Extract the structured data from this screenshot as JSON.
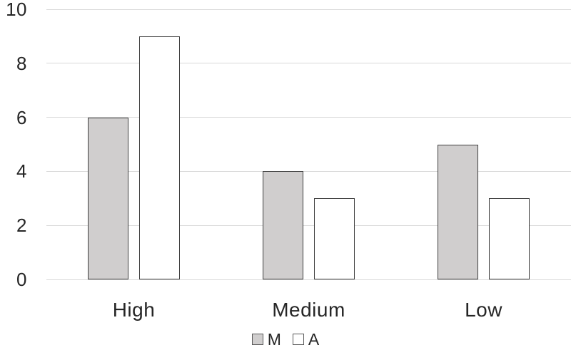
{
  "chart_data": {
    "type": "bar",
    "title": "",
    "xlabel": "",
    "ylabel": "",
    "categories": [
      "High",
      "Medium",
      "Low"
    ],
    "series": [
      {
        "name": "M",
        "values": [
          6,
          4,
          5
        ],
        "fill": "#d0cece",
        "border": "#404040"
      },
      {
        "name": "A",
        "values": [
          9,
          3,
          3
        ],
        "fill": "#ffffff",
        "border": "#404040"
      }
    ],
    "ylim": [
      0,
      10
    ],
    "yticks": [
      0,
      2,
      4,
      6,
      8,
      10
    ],
    "grid": true,
    "gridline_color": "#d9d9d9",
    "legend_position": "bottom",
    "legend_labels": [
      "M",
      "A"
    ]
  },
  "colors": {
    "background": "#ffffff",
    "text": "#262626",
    "gridline": "#d9d9d9",
    "bar_border": "#404040",
    "series_m_fill": "#d0cece",
    "series_a_fill": "#ffffff"
  }
}
